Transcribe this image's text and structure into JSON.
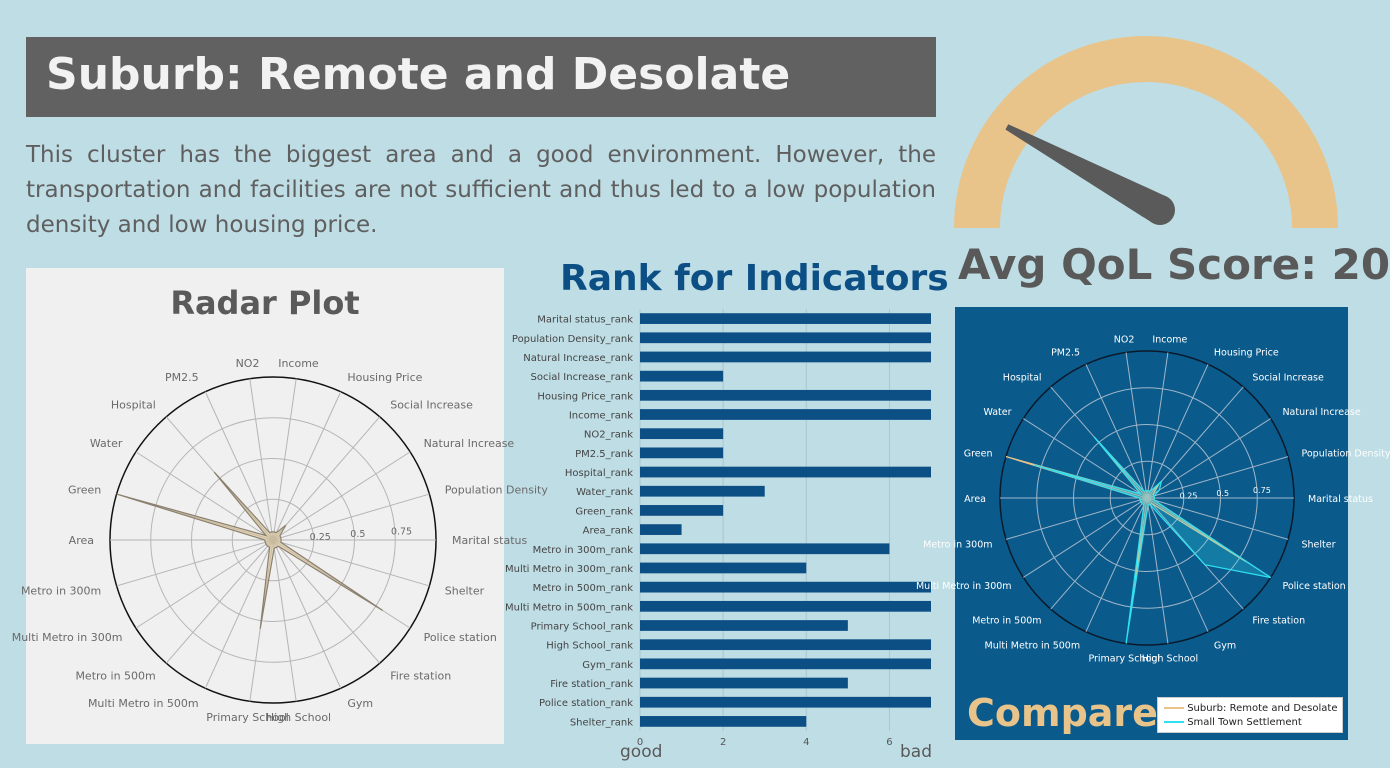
{
  "header": {
    "title": "Suburb: Remote and Desolate",
    "description": "This cluster has the biggest area and a good environment. However, the transportation and facilities are not sufficient and thus led to a low population density and low housing price."
  },
  "gauge": {
    "label": "Avg QoL Score: 20",
    "score": 20,
    "range": [
      0,
      100
    ],
    "fill_color": "#e8c48a",
    "needle_color": "#5a5a5a"
  },
  "compare_label": "Compare",
  "colors": {
    "background": "#bfdde5",
    "bar": "#0b4f85",
    "compare_panel": "#0b5a8c",
    "suburb_remote": "#e8c48a",
    "small_town": "#2fe0f0",
    "title_bar": "#616161",
    "heading_blue": "#0b4f85"
  },
  "chart_data": [
    {
      "type": "radar",
      "title": "Radar Plot",
      "categories": [
        "Income",
        "Housing Price",
        "Social Increase",
        "Natural Increase",
        "Population Density",
        "Marital status",
        "Shelter",
        "Police station",
        "Fire station",
        "Gym",
        "High School",
        "Primary School",
        "Multi Metro in 500m",
        "Metro in 500m",
        "Multi Metro in 300m",
        "Metro in 300m",
        "Area",
        "Green",
        "Water",
        "Hospital",
        "PM2.5",
        "NO2"
      ],
      "radial_ticks": [
        "0.25",
        "0.5",
        "0.75"
      ],
      "rmax": 1.0,
      "series": [
        {
          "values": [
            0.05,
            0.05,
            0.12,
            0.05,
            0.05,
            0.05,
            0.05,
            0.8,
            0.05,
            0.05,
            0.05,
            0.55,
            0.05,
            0.05,
            0.05,
            0.05,
            0.05,
            1.0,
            0.05,
            0.55,
            0.05,
            0.05
          ]
        }
      ]
    },
    {
      "type": "bar",
      "title": "Rank for Indicators",
      "orientation": "horizontal",
      "categories": [
        "Marital status_rank",
        "Population Density_rank",
        "Natural Increase_rank",
        "Social Increase_rank",
        "Housing Price_rank",
        "Income_rank",
        "NO2_rank",
        "PM2.5_rank",
        "Hospital_rank",
        "Water_rank",
        "Green_rank",
        "Area_rank",
        "Metro in 300m_rank",
        "Multi Metro in 300m_rank",
        "Metro in 500m_rank",
        "Multi Metro in 500m_rank",
        "Primary School_rank",
        "High School_rank",
        "Gym_rank",
        "Fire station_rank",
        "Police station_rank",
        "Shelter_rank"
      ],
      "values": [
        7,
        7,
        7,
        2,
        7,
        7,
        2,
        2,
        7,
        3,
        2,
        1,
        6,
        4,
        7,
        7,
        5,
        7,
        7,
        5,
        7,
        4
      ],
      "xlim": [
        0,
        7
      ],
      "xticks": [
        "0",
        "2",
        "4",
        "6"
      ],
      "xlabel_left": "good",
      "xlabel_right": "bad",
      "grid": true
    },
    {
      "type": "radar",
      "categories": [
        "Income",
        "Housing Price",
        "Social Increase",
        "Natural Increase",
        "Population Density",
        "Marital status",
        "Shelter",
        "Police station",
        "Fire station",
        "Gym",
        "High School",
        "Primary School",
        "Multi Metro in 500m",
        "Metro in 500m",
        "Multi Metro in 300m",
        "Metro in 300m",
        "Area",
        "Green",
        "Water",
        "Hospital",
        "PM2.5",
        "NO2"
      ],
      "radial_ticks": [
        "0.25",
        "0.5",
        "0.75"
      ],
      "rmax": 1.0,
      "legend_position": "bottom-right",
      "series": [
        {
          "name": "Suburb: Remote and Desolate",
          "values": [
            0.05,
            0.05,
            0.12,
            0.05,
            0.05,
            0.05,
            0.05,
            0.8,
            0.05,
            0.05,
            0.05,
            0.55,
            0.05,
            0.05,
            0.05,
            0.05,
            0.05,
            1.0,
            0.05,
            0.55,
            0.05,
            0.05
          ]
        },
        {
          "name": "Small Town Settlement",
          "values": [
            0.05,
            0.05,
            0.15,
            0.1,
            0.05,
            0.05,
            0.05,
            1.0,
            0.6,
            0.05,
            0.05,
            1.0,
            0.05,
            0.05,
            0.05,
            0.05,
            0.05,
            0.8,
            0.05,
            0.55,
            0.05,
            0.05
          ]
        }
      ]
    }
  ]
}
